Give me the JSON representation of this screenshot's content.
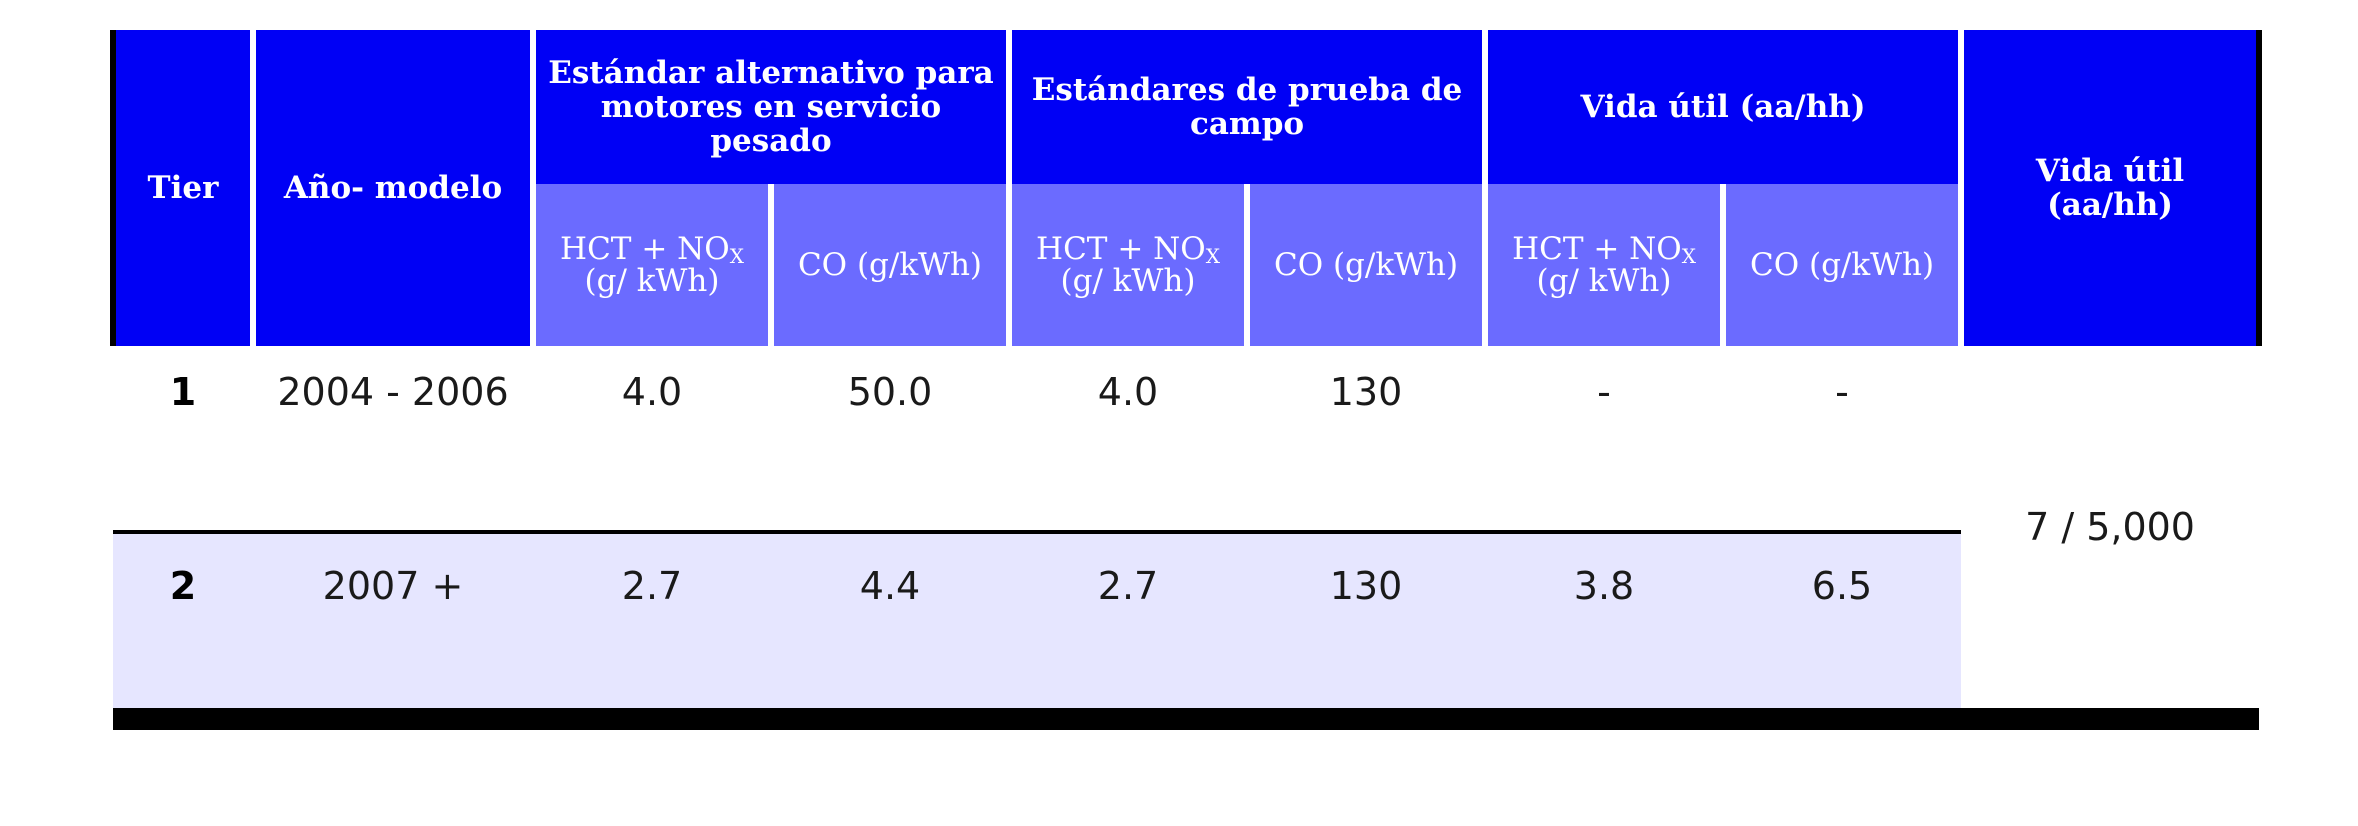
{
  "table": {
    "headers": {
      "tier": "Tier",
      "model_year": "Año- modelo",
      "group_alt": "Estándar alternativo para motores en servicio pesado",
      "group_field": "Estándares de prueba de campo",
      "group_life": "Vida útil (aa/hh)",
      "useful_life": "Vida útil (aa/hh)",
      "sub_hct_prefix": "HCT + NO",
      "sub_hct_subscript": "X",
      "sub_hct_suffix": " (g/ kWh)",
      "sub_co": "CO (g/kWh)"
    },
    "rows": [
      {
        "tier": "1",
        "model_year": "2004 - 2006",
        "alt_hct_nox": "4.0",
        "alt_co": "50.0",
        "field_hct_nox": "4.0",
        "field_co": "130",
        "life_hct_nox": "-",
        "life_co": "-"
      },
      {
        "tier": "2",
        "model_year": "2007 +",
        "alt_hct_nox": "2.7",
        "alt_co": "4.4",
        "field_hct_nox": "2.7",
        "field_co": "130",
        "life_hct_nox": "3.8",
        "life_co": "6.5"
      }
    ],
    "useful_life_value": "7 / 5,000"
  },
  "colors": {
    "header_primary": "#0000f5",
    "header_secondary": "#6b6bff",
    "row_alt": "#e6e6ff",
    "border": "#000000"
  }
}
